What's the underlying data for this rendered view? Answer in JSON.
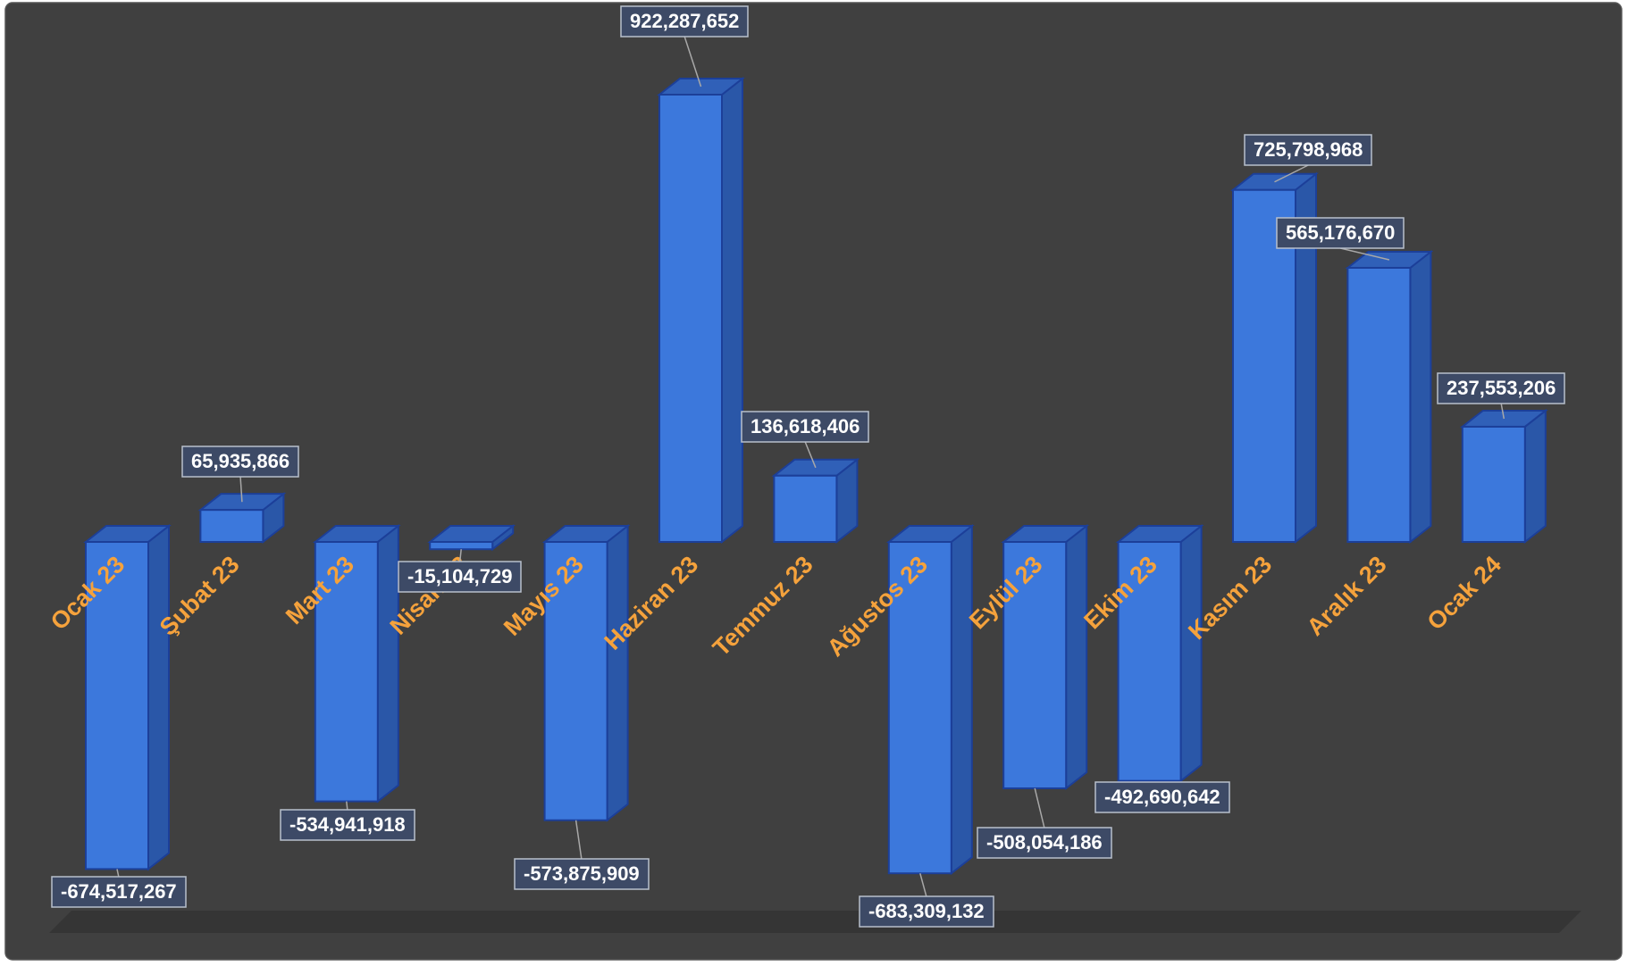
{
  "chart_data": {
    "type": "bar",
    "style": "3d-column",
    "categories": [
      "Ocak 23",
      "Şubat 23",
      "Mart 23",
      "Nisan 23",
      "Mayıs 23",
      "Haziran 23",
      "Temmuz 23",
      "Ağustos 23",
      "Eylül 23",
      "Ekim 23",
      "Kasım 23",
      "Aralık 23",
      "Ocak 24"
    ],
    "values": [
      -674517267,
      65935866,
      -534941918,
      -15104729,
      -573875909,
      922287652,
      136618406,
      -683309132,
      -508054186,
      -492690642,
      725798968,
      565176670,
      237553206
    ],
    "data_labels": [
      "-674,517,267",
      "65,935,866",
      "-534,941,918",
      "-15,104,729",
      "-573,875,909",
      "922,287,652",
      "136,618,406",
      "-683,309,132",
      "-508,054,186",
      "-492,690,642",
      "725,798,968",
      "565,176,670",
      "237,553,206"
    ],
    "title": "",
    "xlabel": "",
    "ylabel": "",
    "ylim": [
      -700000000,
      950000000
    ],
    "grid": false,
    "legend": "none",
    "colors": {
      "background": "#404040",
      "plot_floor": "#353535",
      "bar_front": "#3c78dc",
      "bar_side": "#2a57a8",
      "bar_top": "#3060b8",
      "bar_edge": "#1c3f99",
      "category_label": "#f5a23c",
      "data_label_bg": "#3d4a66",
      "data_label_border": "#b8bfcc",
      "data_label_text": "#ffffff",
      "leader_line": "#a8a8a8",
      "frame": "#555555"
    }
  }
}
